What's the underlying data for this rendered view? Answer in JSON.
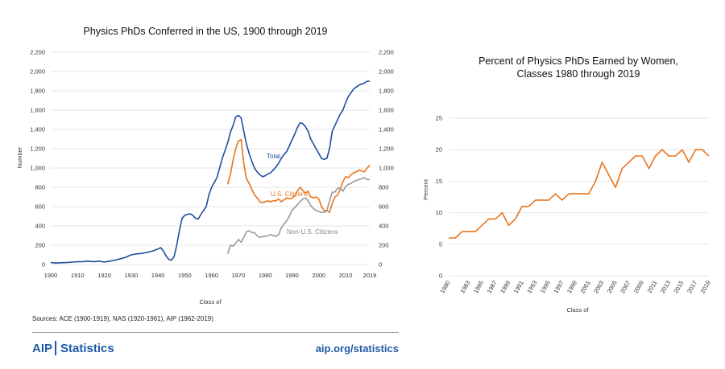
{
  "footer": {
    "sources": "Sources: ACE (1900-1919), NAS (1920-1961), AIP (1962-2019)",
    "brand_aip": "AIP",
    "brand_statistics": "Statistics",
    "url": "aip.org/statistics"
  },
  "chart_data": [
    {
      "type": "line",
      "title": "Physics PhDs Conferred in the US, 1900 through 2019",
      "xlabel": "Class of",
      "ylabel": "Number",
      "xlim": [
        1900,
        2019
      ],
      "ylim": [
        0,
        2200
      ],
      "x_ticks": [
        "1900",
        "1910",
        "1920",
        "1930",
        "1940",
        "1950",
        "1960",
        "1970",
        "1980",
        "1990",
        "2000",
        "2010",
        "2019"
      ],
      "y_ticks": [
        "0",
        "200",
        "400",
        "600",
        "800",
        "1,000",
        "1,200",
        "1,400",
        "1,600",
        "1,800",
        "2,000",
        "2,200"
      ],
      "colors": {
        "total": "#1f4e9c",
        "us": "#e8741e",
        "nonus": "#9a9a9a",
        "grid": "#e6e6e6"
      },
      "series": [
        {
          "name": "Total",
          "points": [
            [
              1900,
              20
            ],
            [
              1902,
              15
            ],
            [
              1904,
              18
            ],
            [
              1906,
              20
            ],
            [
              1908,
              25
            ],
            [
              1910,
              28
            ],
            [
              1912,
              30
            ],
            [
              1914,
              35
            ],
            [
              1916,
              28
            ],
            [
              1918,
              35
            ],
            [
              1920,
              25
            ],
            [
              1922,
              35
            ],
            [
              1924,
              45
            ],
            [
              1926,
              60
            ],
            [
              1928,
              75
            ],
            [
              1930,
              100
            ],
            [
              1932,
              110
            ],
            [
              1934,
              115
            ],
            [
              1936,
              125
            ],
            [
              1938,
              140
            ],
            [
              1940,
              160
            ],
            [
              1941,
              175
            ],
            [
              1942,
              140
            ],
            [
              1943,
              90
            ],
            [
              1944,
              55
            ],
            [
              1945,
              45
            ],
            [
              1946,
              80
            ],
            [
              1947,
              200
            ],
            [
              1948,
              350
            ],
            [
              1949,
              480
            ],
            [
              1950,
              510
            ],
            [
              1951,
              520
            ],
            [
              1952,
              525
            ],
            [
              1953,
              510
            ],
            [
              1954,
              480
            ],
            [
              1955,
              470
            ],
            [
              1956,
              520
            ],
            [
              1957,
              560
            ],
            [
              1958,
              600
            ],
            [
              1959,
              720
            ],
            [
              1960,
              800
            ],
            [
              1961,
              850
            ],
            [
              1962,
              900
            ],
            [
              1963,
              1000
            ],
            [
              1964,
              1100
            ],
            [
              1965,
              1180
            ],
            [
              1966,
              1260
            ],
            [
              1967,
              1370
            ],
            [
              1968,
              1440
            ],
            [
              1969,
              1530
            ],
            [
              1970,
              1545
            ],
            [
              1971,
              1520
            ],
            [
              1972,
              1380
            ],
            [
              1973,
              1250
            ],
            [
              1974,
              1150
            ],
            [
              1975,
              1070
            ],
            [
              1976,
              1000
            ],
            [
              1977,
              960
            ],
            [
              1978,
              930
            ],
            [
              1979,
              910
            ],
            [
              1980,
              920
            ],
            [
              1981,
              940
            ],
            [
              1982,
              950
            ],
            [
              1983,
              980
            ],
            [
              1984,
              1010
            ],
            [
              1985,
              1050
            ],
            [
              1986,
              1100
            ],
            [
              1987,
              1140
            ],
            [
              1988,
              1170
            ],
            [
              1989,
              1230
            ],
            [
              1990,
              1290
            ],
            [
              1991,
              1350
            ],
            [
              1992,
              1420
            ],
            [
              1993,
              1470
            ],
            [
              1994,
              1460
            ],
            [
              1995,
              1430
            ],
            [
              1996,
              1380
            ],
            [
              1997,
              1300
            ],
            [
              1998,
              1250
            ],
            [
              1999,
              1200
            ],
            [
              2000,
              1150
            ],
            [
              2001,
              1100
            ],
            [
              2002,
              1090
            ],
            [
              2003,
              1100
            ],
            [
              2004,
              1200
            ],
            [
              2005,
              1380
            ],
            [
              2006,
              1440
            ],
            [
              2007,
              1500
            ],
            [
              2008,
              1560
            ],
            [
              2009,
              1600
            ],
            [
              2010,
              1680
            ],
            [
              2011,
              1740
            ],
            [
              2012,
              1780
            ],
            [
              2013,
              1820
            ],
            [
              2014,
              1840
            ],
            [
              2015,
              1860
            ],
            [
              2016,
              1870
            ],
            [
              2017,
              1880
            ],
            [
              2018,
              1900
            ],
            [
              2019,
              1900
            ]
          ]
        },
        {
          "name": "U.S. Citizens",
          "points": [
            [
              1966,
              830
            ],
            [
              1967,
              930
            ],
            [
              1968,
              1080
            ],
            [
              1969,
              1200
            ],
            [
              1970,
              1280
            ],
            [
              1971,
              1295
            ],
            [
              1972,
              1050
            ],
            [
              1973,
              890
            ],
            [
              1974,
              840
            ],
            [
              1975,
              780
            ],
            [
              1976,
              720
            ],
            [
              1977,
              690
            ],
            [
              1978,
              650
            ],
            [
              1979,
              640
            ],
            [
              1980,
              650
            ],
            [
              1981,
              660
            ],
            [
              1982,
              650
            ],
            [
              1983,
              660
            ],
            [
              1984,
              660
            ],
            [
              1985,
              680
            ],
            [
              1986,
              650
            ],
            [
              1987,
              670
            ],
            [
              1988,
              690
            ],
            [
              1989,
              680
            ],
            [
              1990,
              690
            ],
            [
              1991,
              710
            ],
            [
              1992,
              760
            ],
            [
              1993,
              800
            ],
            [
              1994,
              770
            ],
            [
              1995,
              740
            ],
            [
              1996,
              760
            ],
            [
              1997,
              700
            ],
            [
              1998,
              690
            ],
            [
              1999,
              700
            ],
            [
              2000,
              680
            ],
            [
              2001,
              600
            ],
            [
              2002,
              560
            ],
            [
              2003,
              560
            ],
            [
              2004,
              540
            ],
            [
              2005,
              630
            ],
            [
              2006,
              700
            ],
            [
              2007,
              720
            ],
            [
              2008,
              780
            ],
            [
              2009,
              860
            ],
            [
              2010,
              910
            ],
            [
              2011,
              900
            ],
            [
              2012,
              930
            ],
            [
              2013,
              950
            ],
            [
              2014,
              960
            ],
            [
              2015,
              980
            ],
            [
              2016,
              970
            ],
            [
              2017,
              960
            ],
            [
              2018,
              1000
            ],
            [
              2019,
              1030
            ]
          ]
        },
        {
          "name": "Non-U.S. Citizens",
          "points": [
            [
              1966,
              110
            ],
            [
              1967,
              200
            ],
            [
              1968,
              190
            ],
            [
              1969,
              220
            ],
            [
              1970,
              260
            ],
            [
              1971,
              230
            ],
            [
              1972,
              280
            ],
            [
              1973,
              340
            ],
            [
              1974,
              350
            ],
            [
              1975,
              330
            ],
            [
              1976,
              330
            ],
            [
              1977,
              300
            ],
            [
              1978,
              280
            ],
            [
              1979,
              290
            ],
            [
              1980,
              290
            ],
            [
              1981,
              300
            ],
            [
              1982,
              310
            ],
            [
              1983,
              300
            ],
            [
              1984,
              290
            ],
            [
              1985,
              310
            ],
            [
              1986,
              380
            ],
            [
              1987,
              420
            ],
            [
              1988,
              450
            ],
            [
              1989,
              500
            ],
            [
              1990,
              560
            ],
            [
              1991,
              590
            ],
            [
              1992,
              620
            ],
            [
              1993,
              650
            ],
            [
              1994,
              680
            ],
            [
              1995,
              690
            ],
            [
              1996,
              660
            ],
            [
              1997,
              610
            ],
            [
              1998,
              580
            ],
            [
              1999,
              560
            ],
            [
              2000,
              550
            ],
            [
              2001,
              540
            ],
            [
              2002,
              540
            ],
            [
              2003,
              560
            ],
            [
              2004,
              660
            ],
            [
              2005,
              750
            ],
            [
              2006,
              750
            ],
            [
              2007,
              790
            ],
            [
              2008,
              790
            ],
            [
              2009,
              760
            ],
            [
              2010,
              810
            ],
            [
              2011,
              830
            ],
            [
              2012,
              840
            ],
            [
              2013,
              860
            ],
            [
              2014,
              870
            ],
            [
              2015,
              880
            ],
            [
              2016,
              890
            ],
            [
              2017,
              900
            ],
            [
              2018,
              880
            ],
            [
              2019,
              880
            ]
          ]
        }
      ]
    },
    {
      "type": "line",
      "title": "Percent of Physics PhDs Earned by Women, Classes 1980 through 2019",
      "title_lines": [
        "Percent of Physics PhDs Earned by Women,",
        "Classes 1980 through 2019"
      ],
      "xlabel": "Class of",
      "ylabel": "Percent",
      "xlim": [
        1980,
        2019
      ],
      "ylim": [
        0,
        25
      ],
      "x_ticks": [
        "1980",
        "1983",
        "1985",
        "1987",
        "1989",
        "1991",
        "1993",
        "1995",
        "1997",
        "1999",
        "2001",
        "2003",
        "2005",
        "2007",
        "2009",
        "2011",
        "2013",
        "2015",
        "2017",
        "2019"
      ],
      "y_ticks": [
        "0",
        "5",
        "10",
        "15",
        "20",
        "25"
      ],
      "colors": {
        "line": "#e8741e",
        "grid": "#e6e6e6"
      },
      "series": [
        {
          "name": "",
          "points": [
            [
              1980,
              6
            ],
            [
              1981,
              6
            ],
            [
              1982,
              7
            ],
            [
              1983,
              7
            ],
            [
              1984,
              7
            ],
            [
              1985,
              8
            ],
            [
              1986,
              9
            ],
            [
              1987,
              9
            ],
            [
              1988,
              10
            ],
            [
              1989,
              8
            ],
            [
              1990,
              9
            ],
            [
              1991,
              11
            ],
            [
              1992,
              11
            ],
            [
              1993,
              12
            ],
            [
              1994,
              12
            ],
            [
              1995,
              12
            ],
            [
              1996,
              13
            ],
            [
              1997,
              12
            ],
            [
              1998,
              13
            ],
            [
              1999,
              13
            ],
            [
              2000,
              13
            ],
            [
              2001,
              13
            ],
            [
              2002,
              15
            ],
            [
              2003,
              18
            ],
            [
              2004,
              16
            ],
            [
              2005,
              14
            ],
            [
              2006,
              17
            ],
            [
              2007,
              18
            ],
            [
              2008,
              19
            ],
            [
              2009,
              19
            ],
            [
              2010,
              17
            ],
            [
              2011,
              19
            ],
            [
              2012,
              20
            ],
            [
              2013,
              19
            ],
            [
              2014,
              19
            ],
            [
              2015,
              20
            ],
            [
              2016,
              18
            ],
            [
              2017,
              20
            ],
            [
              2018,
              20
            ],
            [
              2019,
              19
            ]
          ]
        }
      ]
    }
  ]
}
